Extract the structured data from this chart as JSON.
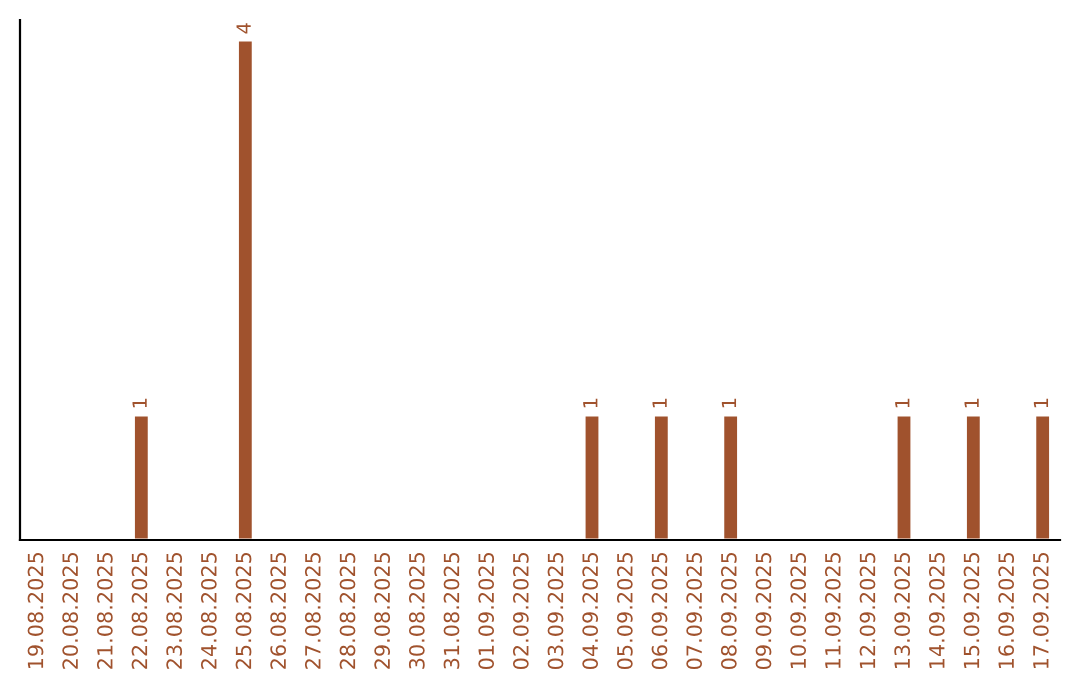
{
  "chart_data": {
    "type": "bar",
    "categories": [
      "19.08.2025",
      "20.08.2025",
      "21.08.2025",
      "22.08.2025",
      "23.08.2025",
      "24.08.2025",
      "25.08.2025",
      "26.08.2025",
      "27.08.2025",
      "28.08.2025",
      "29.08.2025",
      "30.08.2025",
      "31.08.2025",
      "01.09.2025",
      "02.09.2025",
      "03.09.2025",
      "04.09.2025",
      "05.09.2025",
      "06.09.2025",
      "07.09.2025",
      "08.09.2025",
      "09.09.2025",
      "10.09.2025",
      "11.09.2025",
      "12.09.2025",
      "13.09.2025",
      "14.09.2025",
      "15.09.2025",
      "16.09.2025",
      "17.09.2025"
    ],
    "values": [
      null,
      null,
      null,
      1,
      null,
      null,
      4,
      null,
      null,
      null,
      null,
      null,
      null,
      null,
      null,
      null,
      1,
      null,
      1,
      null,
      1,
      null,
      null,
      null,
      null,
      1,
      null,
      1,
      null,
      1
    ],
    "value_labels": [
      null,
      null,
      null,
      "1",
      null,
      null,
      "4",
      null,
      null,
      null,
      null,
      null,
      null,
      null,
      null,
      null,
      "1",
      null,
      "1",
      null,
      "1",
      null,
      null,
      null,
      null,
      "1",
      null,
      "1",
      null,
      "1"
    ],
    "color": "#a0522d",
    "grid": false,
    "legend": false
  }
}
